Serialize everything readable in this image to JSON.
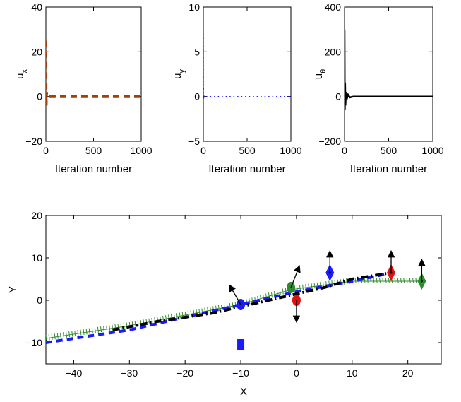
{
  "chart_data": [
    {
      "type": "line",
      "ylabel": "u_x",
      "xlabel": "Iteration number",
      "xlim": [
        0,
        1000
      ],
      "ylim": [
        -20,
        40
      ],
      "xticks": [
        0,
        500,
        1000
      ],
      "yticks": [
        -20,
        0,
        20,
        40
      ],
      "grid": false,
      "series": [
        {
          "color": "#a0400a",
          "style": "dashed",
          "x": [
            0,
            1,
            3,
            6,
            10,
            20,
            50,
            100,
            200,
            400,
            600,
            800,
            1000
          ],
          "y": [
            25,
            5,
            -4,
            2,
            0.5,
            0,
            0,
            0,
            0,
            0,
            0,
            0,
            0
          ]
        }
      ]
    },
    {
      "type": "line",
      "ylabel": "u_y",
      "xlabel": "Iteration number",
      "xlim": [
        0,
        1000
      ],
      "ylim": [
        -5,
        10
      ],
      "xticks": [
        0,
        500,
        1000
      ],
      "yticks": [
        -5,
        0,
        5,
        10
      ],
      "grid": false,
      "series": [
        {
          "color": "#1a1aff",
          "style": "dotted",
          "x": [
            0,
            1,
            3,
            6,
            10,
            20,
            50,
            100,
            200,
            400,
            600,
            800,
            1000
          ],
          "y": [
            7,
            2,
            -0.3,
            0.2,
            0,
            0,
            0,
            0,
            0,
            0,
            0,
            0,
            0
          ]
        }
      ]
    },
    {
      "type": "line",
      "ylabel": "u_θ",
      "xlabel": "Iteration number",
      "xlim": [
        0,
        1000
      ],
      "ylim": [
        -200,
        400
      ],
      "xticks": [
        0,
        500,
        1000
      ],
      "yticks": [
        -200,
        0,
        200,
        400
      ],
      "grid": false,
      "series": [
        {
          "color": "#000000",
          "style": "solid",
          "x": [
            0,
            3,
            6,
            10,
            15,
            25,
            40,
            60,
            100,
            200,
            400,
            600,
            800,
            1000
          ],
          "y": [
            300,
            -60,
            60,
            -40,
            20,
            -12,
            8,
            -4,
            0,
            0,
            0,
            0,
            0,
            0
          ]
        }
      ]
    },
    {
      "type": "line",
      "xlabel": "X",
      "ylabel": "Y",
      "xlim": [
        -45,
        26
      ],
      "ylim": [
        -15,
        20
      ],
      "xticks": [
        -40,
        -30,
        -20,
        -10,
        0,
        10,
        20
      ],
      "yticks": [
        -10,
        0,
        10,
        20
      ],
      "grid": false,
      "series": [
        {
          "color": "#2e8b2e",
          "style": "hatched",
          "x": [
            -45,
            -30,
            -20,
            -10,
            -1,
            10,
            16,
            22.5
          ],
          "y": [
            -9,
            -6,
            -3.5,
            -1,
            2.5,
            4.5,
            4.5,
            4.5
          ]
        },
        {
          "color": "#1a1aff",
          "style": "dashed",
          "x": [
            -45,
            -30,
            -20,
            -10,
            0,
            8,
            12,
            17
          ],
          "y": [
            -10,
            -7,
            -4,
            -1,
            2,
            4,
            5,
            6.5
          ]
        },
        {
          "color": "#000000",
          "style": "dashdot",
          "x": [
            -33,
            -25,
            -15,
            -10,
            -5,
            0,
            5,
            10,
            17
          ],
          "y": [
            -7,
            -5,
            -3,
            -1.5,
            0,
            1.5,
            3,
            5,
            6.5
          ]
        }
      ],
      "markers": [
        {
          "shape": "circle",
          "color": "#1a1aff",
          "x": -10,
          "y": -1
        },
        {
          "shape": "circle",
          "color": "#2e8b2e",
          "x": -1,
          "y": 3
        },
        {
          "shape": "circle",
          "color": "#e01010",
          "x": 0,
          "y": 0
        },
        {
          "shape": "diamond",
          "color": "#1a1aff",
          "x": 6,
          "y": 6.5
        },
        {
          "shape": "diamond",
          "color": "#e01010",
          "x": 17,
          "y": 6.5
        },
        {
          "shape": "diamond",
          "color": "#2e8b2e",
          "x": 22.5,
          "y": 4.5
        },
        {
          "shape": "square",
          "color": "#1a1aff",
          "x": -10,
          "y": -10.5
        }
      ],
      "arrows": [
        {
          "x": -10,
          "y": -1,
          "dx": -2,
          "dy": 4.5
        },
        {
          "x": -1,
          "y": 3,
          "dx": 1.5,
          "dy": 5
        },
        {
          "x": 0,
          "y": 0,
          "dx": 0,
          "dy": -5
        },
        {
          "x": 6,
          "y": 6.5,
          "dx": 0,
          "dy": 5
        },
        {
          "x": 17,
          "y": 6.5,
          "dx": 0,
          "dy": 5
        },
        {
          "x": 22.5,
          "y": 4.5,
          "dx": 0,
          "dy": 5
        }
      ]
    }
  ]
}
